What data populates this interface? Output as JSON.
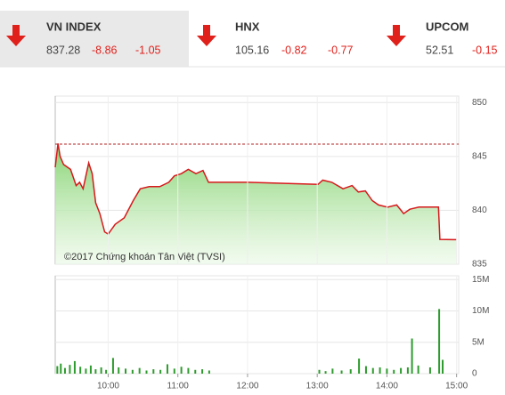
{
  "header": {
    "indices": [
      {
        "name": "VN INDEX",
        "value": "837.28",
        "change": "-8.86",
        "percent": "-1.05"
      },
      {
        "name": "HNX",
        "value": "105.16",
        "change": "-0.82",
        "percent": "-0.77"
      },
      {
        "name": "UPCOM",
        "value": "52.51",
        "change": "-0.15"
      }
    ]
  },
  "chart_data": [
    {
      "type": "line",
      "watermark": "©2017 Chứng khoán Tân Việt (TVSI)",
      "x": [
        9.24,
        9.28,
        9.31,
        9.36,
        9.46,
        9.54,
        9.59,
        9.64,
        9.72,
        9.77,
        9.82,
        9.88,
        9.95,
        10.0,
        10.1,
        10.23,
        10.36,
        10.46,
        10.59,
        10.74,
        10.87,
        10.95,
        11.05,
        11.15,
        11.26,
        11.36,
        11.44,
        12.0,
        13.01,
        13.08,
        13.21,
        13.37,
        13.5,
        13.59,
        13.69,
        13.79,
        13.88,
        14.01,
        14.14,
        14.24,
        14.33,
        14.46,
        14.59,
        14.74,
        14.76,
        15.0
      ],
      "values": [
        844.0,
        846.2,
        845.0,
        844.25,
        843.8,
        842.3,
        842.6,
        842.0,
        844.4,
        843.4,
        840.7,
        839.7,
        838.0,
        837.8,
        838.7,
        839.3,
        840.9,
        842.0,
        842.2,
        842.2,
        842.6,
        843.2,
        843.4,
        843.8,
        843.4,
        843.7,
        842.6,
        842.6,
        842.4,
        842.8,
        842.6,
        842.0,
        842.3,
        841.7,
        841.8,
        840.9,
        840.5,
        840.3,
        840.5,
        839.7,
        840.1,
        840.3,
        840.3,
        840.3,
        837.3,
        837.28
      ],
      "color": "#d7191c",
      "fill_color": "#8fd67a",
      "reference_line": 846.14,
      "reference_color": "#b22222",
      "xlim": [
        9.24,
        15.03
      ],
      "ylim": [
        835,
        850.6
      ],
      "yticks": [
        835,
        840,
        845,
        850
      ],
      "grid": true
    },
    {
      "type": "bar",
      "x": [
        9.27,
        9.32,
        9.38,
        9.45,
        9.52,
        9.6,
        9.68,
        9.75,
        9.82,
        9.9,
        9.97,
        10.07,
        10.15,
        10.25,
        10.35,
        10.45,
        10.55,
        10.65,
        10.75,
        10.85,
        10.95,
        11.05,
        11.15,
        11.25,
        11.35,
        11.45,
        13.03,
        13.12,
        13.22,
        13.35,
        13.48,
        13.6,
        13.7,
        13.8,
        13.9,
        14.0,
        14.1,
        14.2,
        14.3,
        14.36,
        14.45,
        14.62,
        14.75,
        14.8
      ],
      "values": [
        1200000,
        1600000,
        900000,
        1400000,
        2000000,
        1100000,
        800000,
        1300000,
        700000,
        1000000,
        600000,
        2500000,
        1000000,
        800000,
        600000,
        900000,
        500000,
        700000,
        600000,
        1500000,
        800000,
        1100000,
        900000,
        600000,
        700000,
        500000,
        600000,
        400000,
        800000,
        500000,
        700000,
        2400000,
        1200000,
        900000,
        1000000,
        800000,
        600000,
        900000,
        1000000,
        5600000,
        1300000,
        1000000,
        10300000,
        2200000
      ],
      "color": "#2e9b2e",
      "xlim": [
        9.24,
        15.03
      ],
      "ylim": [
        0,
        15600000
      ],
      "yticks": [
        0,
        {
          "value": 5000000,
          "label": "5M"
        },
        {
          "value": 10000000,
          "label": "10M"
        },
        {
          "value": 15000000,
          "label": "15M"
        }
      ],
      "xticks": [
        {
          "value": 10,
          "label": "10:00"
        },
        {
          "value": 11,
          "label": "11:00"
        },
        {
          "value": 12,
          "label": "12:00"
        },
        {
          "value": 13,
          "label": "13:00"
        },
        {
          "value": 14,
          "label": "14:00"
        },
        {
          "value": 15,
          "label": "15:00"
        }
      ],
      "grid": true
    }
  ]
}
